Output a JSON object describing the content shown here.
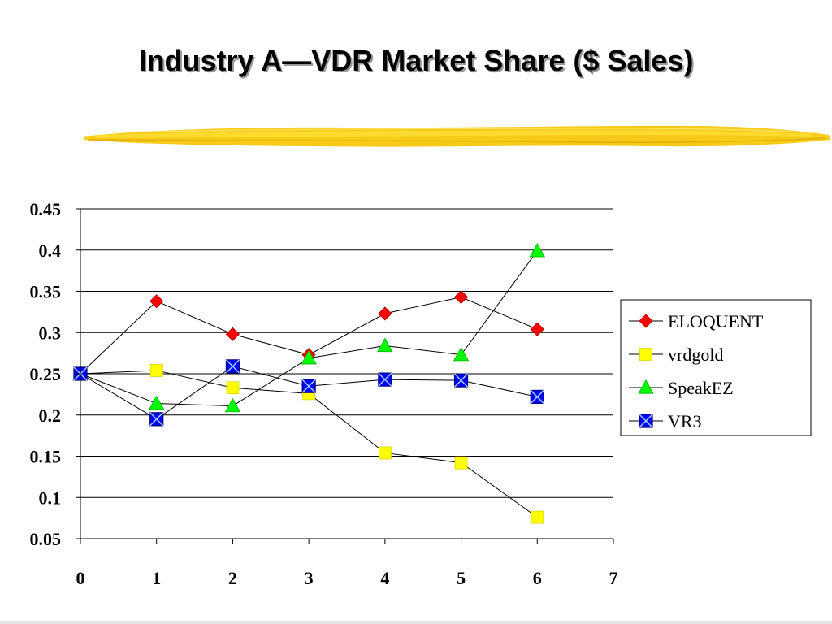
{
  "slide": {
    "title": "Industry A—VDR Market Share ($ Sales)"
  },
  "colors": {
    "brush": "#f5c400",
    "grid": "#000000",
    "line": "#000000"
  },
  "chart_data": {
    "type": "line",
    "title": "",
    "xlabel": "",
    "ylabel": "",
    "xlim": [
      0,
      7
    ],
    "ylim": [
      0.05,
      0.45
    ],
    "xticks": [
      "0",
      "1",
      "2",
      "3",
      "4",
      "5",
      "6",
      "7"
    ],
    "yticks": [
      "0.45",
      "0.4",
      "0.35",
      "0.3",
      "0.25",
      "0.2",
      "0.15",
      "0.1",
      "0.05"
    ],
    "grid": "horizontal",
    "legend_position": "right",
    "x": [
      0,
      1,
      2,
      3,
      4,
      5,
      6
    ],
    "series": [
      {
        "name": "ELOQUENT",
        "marker": "diamond",
        "color": "#ff0000",
        "values": [
          0.25,
          0.338,
          0.298,
          0.273,
          0.323,
          0.343,
          0.304
        ]
      },
      {
        "name": "vrdgold",
        "marker": "square",
        "color": "#ffff00",
        "values": [
          0.25,
          0.254,
          0.233,
          0.226,
          0.154,
          0.142,
          0.076
        ]
      },
      {
        "name": "SpeakEZ",
        "marker": "triangle",
        "color": "#00ff00",
        "values": [
          0.25,
          0.214,
          0.211,
          0.269,
          0.284,
          0.273,
          0.399
        ]
      },
      {
        "name": "VR3",
        "marker": "x-square",
        "color": "#0000ff",
        "values": [
          0.25,
          0.195,
          0.259,
          0.235,
          0.243,
          0.242,
          0.222
        ]
      }
    ]
  }
}
